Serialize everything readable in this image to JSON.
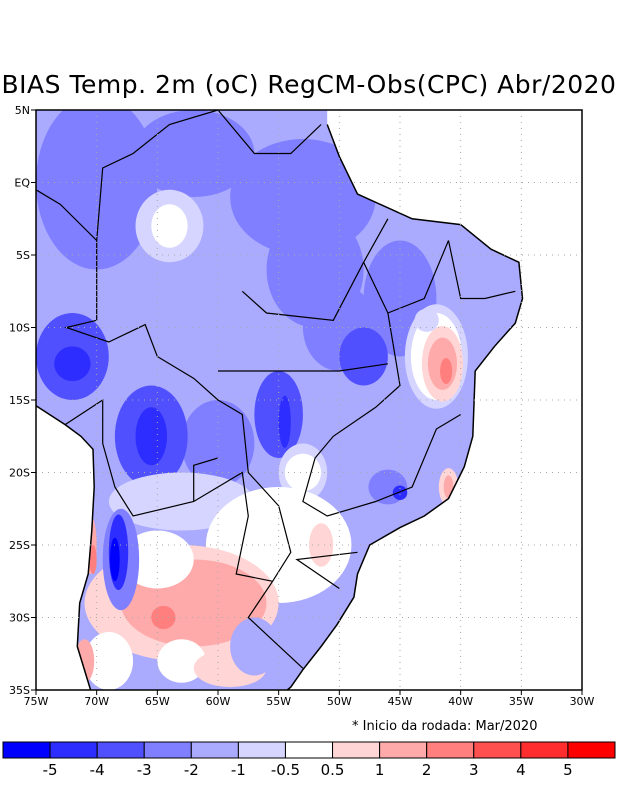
{
  "title": "BIAS Temp. 2m (oC) RegCM-Obs(CPC) Abr/2020",
  "note": "* Inicio da rodada: Mar/2020",
  "map": {
    "lon_range": [
      -75,
      -30
    ],
    "lat_range": [
      -35,
      5
    ],
    "lat_labels": [
      {
        "lat": 5,
        "text": "5N"
      },
      {
        "lat": 0,
        "text": "EQ"
      },
      {
        "lat": -5,
        "text": "5S"
      },
      {
        "lat": -10,
        "text": "10S"
      },
      {
        "lat": -15,
        "text": "15S"
      },
      {
        "lat": -20,
        "text": "20S"
      },
      {
        "lat": -25,
        "text": "25S"
      },
      {
        "lat": -30,
        "text": "30S"
      },
      {
        "lat": -35,
        "text": "35S"
      }
    ],
    "lon_labels": [
      {
        "lon": -75,
        "text": "75W"
      },
      {
        "lon": -70,
        "text": "70W"
      },
      {
        "lon": -65,
        "text": "65W"
      },
      {
        "lon": -60,
        "text": "60W"
      },
      {
        "lon": -55,
        "text": "55W"
      },
      {
        "lon": -50,
        "text": "50W"
      },
      {
        "lon": -45,
        "text": "45W"
      },
      {
        "lon": -40,
        "text": "40W"
      },
      {
        "lon": -35,
        "text": "35W"
      },
      {
        "lon": -30,
        "text": "30W"
      }
    ]
  },
  "colorbar": {
    "colors": [
      "#0000ff",
      "#2d2dff",
      "#5050ff",
      "#7f7fff",
      "#aaaaff",
      "#d5d5ff",
      "#ffffff",
      "#ffd5d5",
      "#ffaaaa",
      "#ff7f7f",
      "#ff5050",
      "#ff2d2d",
      "#ff0000"
    ],
    "labels": [
      "-5",
      "-4",
      "-3",
      "-2",
      "-1",
      "-0.5",
      "0.5",
      "1",
      "2",
      "3",
      "4",
      "5"
    ]
  }
}
